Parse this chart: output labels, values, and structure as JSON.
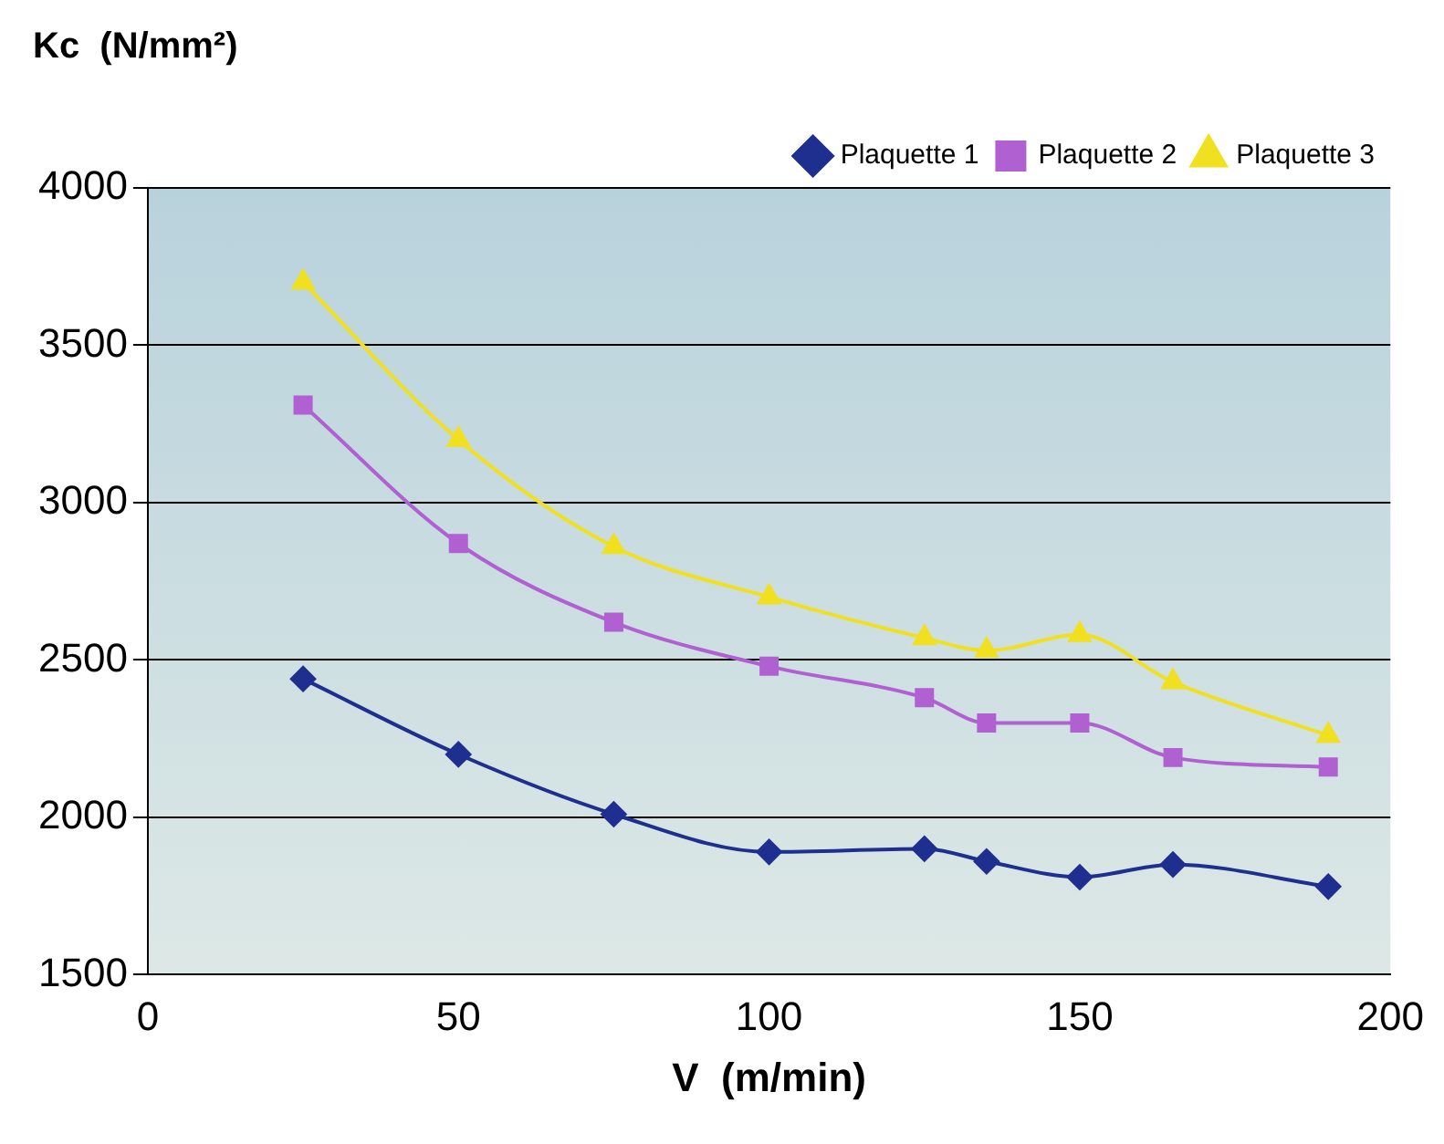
{
  "chart_data": {
    "type": "line",
    "ylabel": "Kc  (N/mm²)",
    "xlabel": "V  (m/min)",
    "x": [
      25,
      50,
      75,
      100,
      125,
      135,
      150,
      165,
      190
    ],
    "series": [
      {
        "name": "Plaquette 1",
        "color": "#1f2f8f",
        "marker": "diamond",
        "values": [
          2440,
          2200,
          2010,
          1890,
          1900,
          1860,
          1810,
          1850,
          1780
        ]
      },
      {
        "name": "Plaquette 2",
        "color": "#b060d0",
        "marker": "square",
        "values": [
          3310,
          2870,
          2620,
          2480,
          2380,
          2300,
          2300,
          2190,
          2160
        ]
      },
      {
        "name": "Plaquette 3",
        "color": "#f0e020",
        "marker": "triangle",
        "values": [
          3700,
          3200,
          2860,
          2700,
          2570,
          2530,
          2580,
          2430,
          2260
        ]
      }
    ],
    "xlim": [
      0,
      200
    ],
    "xticks": [
      0,
      50,
      100,
      150,
      200
    ],
    "ylim": [
      1500,
      4000
    ],
    "yticks": [
      1500,
      2000,
      2500,
      3000,
      3500,
      4000
    ],
    "grid": "y",
    "legend": "top right"
  }
}
